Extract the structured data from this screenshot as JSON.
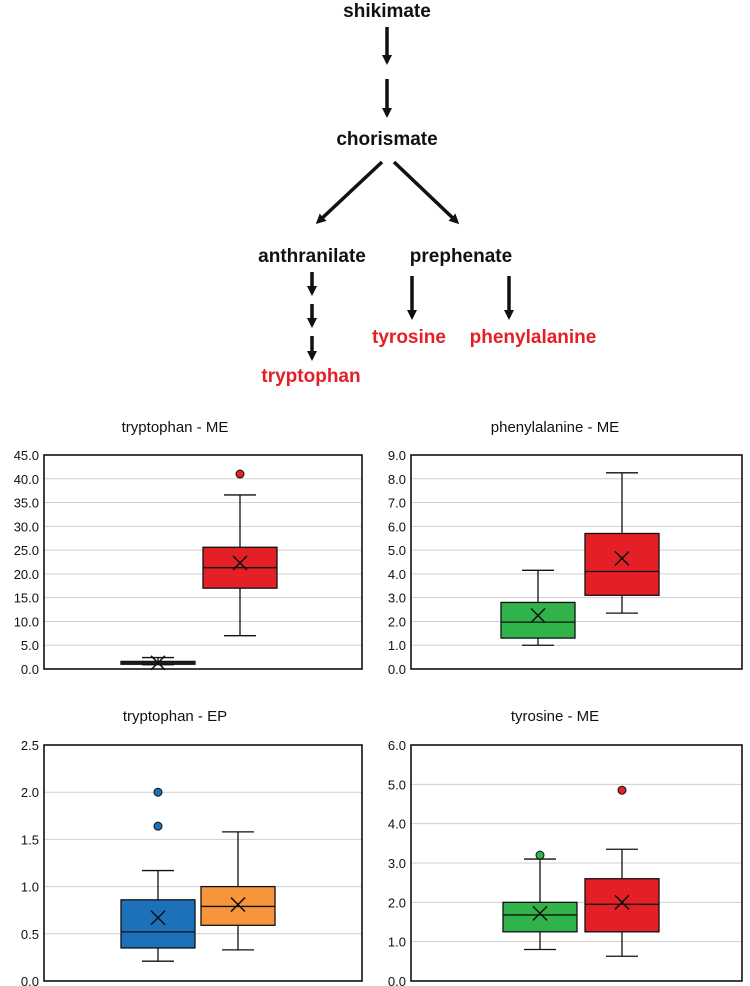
{
  "pathway": {
    "nodes": {
      "shikimate": "shikimate",
      "chorismate": "chorismate",
      "anthranilate": "anthranilate",
      "prephenate": "prephenate",
      "tryptophan": "tryptophan",
      "tyrosine": "tyrosine",
      "phenylalanine": "phenylalanine"
    },
    "colors": {
      "metabolite": "#111111",
      "amino_acid": "#e41f26",
      "arrow": "#111111"
    }
  },
  "chart_data": [
    {
      "type": "box",
      "title": "tryptophan - ME",
      "ylim": [
        0,
        45
      ],
      "yticks": [
        "0.0",
        "5.0",
        "10.0",
        "15.0",
        "20.0",
        "25.0",
        "30.0",
        "35.0",
        "40.0",
        "45.0"
      ],
      "grid": true,
      "series": [
        {
          "color": "#2fb34a",
          "min": 0.9,
          "q1": 1.0,
          "median": 1.3,
          "q3": 1.6,
          "max": 2.4,
          "mean": 1.3,
          "outliers": []
        },
        {
          "color": "#e41f26",
          "min": 7.0,
          "q1": 17.0,
          "median": 21.3,
          "q3": 25.6,
          "max": 36.6,
          "mean": 22.3,
          "outliers": [
            41.0
          ]
        }
      ]
    },
    {
      "type": "box",
      "title": "phenylalanine - ME",
      "ylim": [
        0,
        9
      ],
      "yticks": [
        "0.0",
        "1.0",
        "2.0",
        "3.0",
        "4.0",
        "5.0",
        "6.0",
        "7.0",
        "8.0",
        "9.0"
      ],
      "grid": true,
      "series": [
        {
          "color": "#2fb34a",
          "min": 1.0,
          "q1": 1.3,
          "median": 1.97,
          "q3": 2.8,
          "max": 4.15,
          "mean": 2.25,
          "outliers": []
        },
        {
          "color": "#e41f26",
          "min": 2.35,
          "q1": 3.1,
          "median": 4.1,
          "q3": 5.7,
          "max": 8.25,
          "mean": 4.65,
          "outliers": []
        }
      ]
    },
    {
      "type": "box",
      "title": "tryptophan - EP",
      "ylim": [
        0,
        2.5
      ],
      "yticks": [
        "0.0",
        "0.5",
        "1.0",
        "1.5",
        "2.0",
        "2.5"
      ],
      "grid": true,
      "series": [
        {
          "color": "#1d71b8",
          "min": 0.21,
          "q1": 0.35,
          "median": 0.52,
          "q3": 0.86,
          "max": 1.17,
          "mean": 0.67,
          "outliers": [
            1.64,
            2.0
          ]
        },
        {
          "color": "#f7953d",
          "min": 0.33,
          "q1": 0.59,
          "median": 0.79,
          "q3": 1.0,
          "max": 1.58,
          "mean": 0.81,
          "outliers": []
        }
      ]
    },
    {
      "type": "box",
      "title": "tyrosine - ME",
      "ylim": [
        0,
        6
      ],
      "yticks": [
        "0.0",
        "1.0",
        "2.0",
        "3.0",
        "4.0",
        "5.0",
        "6.0"
      ],
      "grid": true,
      "series": [
        {
          "color": "#2fb34a",
          "min": 0.8,
          "q1": 1.25,
          "median": 1.68,
          "q3": 2.0,
          "max": 3.1,
          "mean": 1.72,
          "outliers": [
            3.2
          ]
        },
        {
          "color": "#e41f26",
          "min": 0.63,
          "q1": 1.25,
          "median": 1.95,
          "q3": 2.6,
          "max": 3.35,
          "mean": 2.0,
          "outliers": [
            4.85
          ]
        }
      ]
    }
  ]
}
